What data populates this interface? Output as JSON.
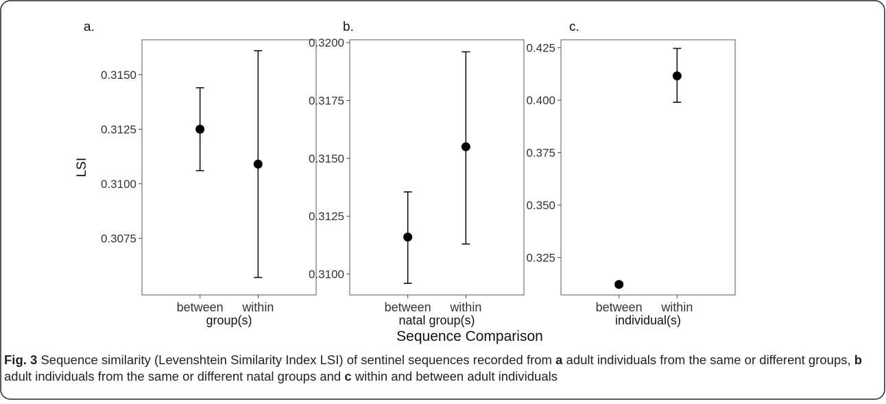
{
  "supertitle": "Sequence Comparison",
  "caption": {
    "fig_label": "Fig. 3",
    "segments": [
      {
        "text": " Sequence similarity (Levenshtein Similarity Index LSI) of sentinel sequences recorded from ",
        "bold": false
      },
      {
        "text": "a",
        "bold": true
      },
      {
        "text": " adult individuals from the same or different groups, ",
        "bold": false
      },
      {
        "text": "b",
        "bold": true
      },
      {
        "text": " adult individuals from the same or different natal groups and ",
        "bold": false
      },
      {
        "text": "c",
        "bold": true
      },
      {
        "text": " within and between adult individuals",
        "bold": false
      }
    ]
  },
  "chart_data": [
    {
      "type": "scatter",
      "panel_label": "a.",
      "ylabel": "LSI",
      "xlabel": "group(s)",
      "categories": [
        "between",
        "within"
      ],
      "y": [
        0.3125,
        0.3109
      ],
      "y_lower": [
        0.3106,
        0.3057
      ],
      "y_upper": [
        0.3144,
        0.3161
      ],
      "ylim": [
        0.3049,
        0.3166
      ],
      "yticks": [
        0.3075,
        0.31,
        0.3125,
        0.315
      ],
      "ytick_labels": [
        "0.3075",
        "0.3100",
        "0.3125",
        "0.3150"
      ],
      "grid": false,
      "error_bars": true
    },
    {
      "type": "scatter",
      "panel_label": "b.",
      "ylabel": "",
      "xlabel": "natal group(s)",
      "categories": [
        "between",
        "within"
      ],
      "y": [
        0.3116,
        0.3155
      ],
      "y_lower": [
        0.3096,
        0.3113
      ],
      "y_upper": [
        0.31355,
        0.3196
      ],
      "ylim": [
        0.3091,
        0.32012
      ],
      "yticks": [
        0.31,
        0.3125,
        0.315,
        0.3175,
        0.32
      ],
      "ytick_labels": [
        "0.3100",
        "0.3125",
        "0.3150",
        "0.3175",
        "0.3200"
      ],
      "grid": false,
      "error_bars": true
    },
    {
      "type": "scatter",
      "panel_label": "c.",
      "ylabel": "",
      "xlabel": "individual(s)",
      "categories": [
        "between",
        "within"
      ],
      "y": [
        0.3122,
        0.4116
      ],
      "y_lower": [
        0.3113,
        0.399
      ],
      "y_upper": [
        0.3131,
        0.4247
      ],
      "ylim": [
        0.3072,
        0.4288
      ],
      "yticks": [
        0.325,
        0.35,
        0.375,
        0.4,
        0.425
      ],
      "ytick_labels": [
        "0.325",
        "0.350",
        "0.375",
        "0.400",
        "0.425"
      ],
      "grid": false,
      "error_bars": true
    }
  ]
}
